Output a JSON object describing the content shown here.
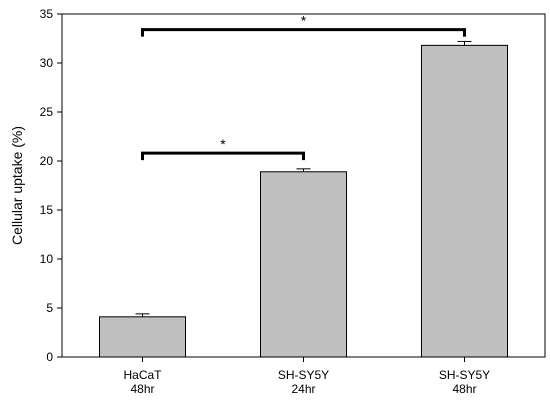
{
  "chart_data": {
    "type": "bar",
    "categories": [
      [
        "HaCaT",
        "48hr"
      ],
      [
        "SH-SY5Y",
        "24hr"
      ],
      [
        "SH-SY5Y",
        "48hr"
      ]
    ],
    "values": [
      4.1,
      18.9,
      31.8
    ],
    "errors": [
      0.3,
      0.3,
      0.4
    ],
    "ylabel": "Cellular uptake (%)",
    "xlabel": "",
    "ylim": [
      0,
      35
    ],
    "yticks": [
      0,
      5,
      10,
      15,
      20,
      25,
      30,
      35
    ],
    "grid": false,
    "bar_color": "#c0c0c0",
    "bar_edge_color": "#000000",
    "significance": [
      {
        "from": 0,
        "to": 1,
        "height": 20.8,
        "label": "*"
      },
      {
        "from": 0,
        "to": 2,
        "height": 33.4,
        "label": "*"
      }
    ]
  }
}
